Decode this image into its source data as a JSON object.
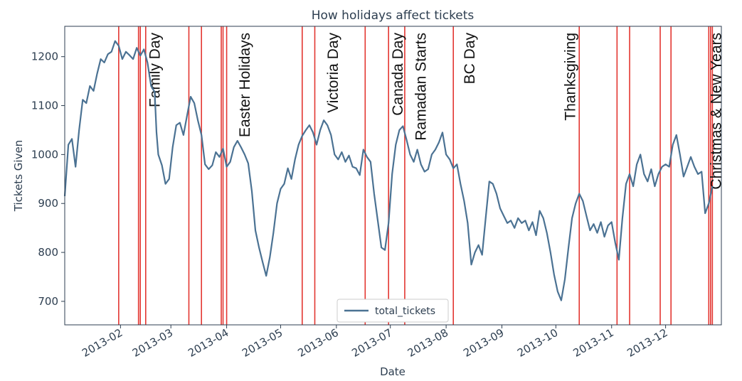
{
  "chart_data": {
    "type": "line",
    "title": "How holidays affect tickets",
    "xlabel": "Date",
    "ylabel": "Tickets Given",
    "xlim": [
      "2013-01-01",
      "2014-01-01"
    ],
    "ylim": [
      652,
      1262
    ],
    "x_tick_labels": [
      "2013-02",
      "2013-03",
      "2013-04",
      "2013-05",
      "2013-06",
      "2013-07",
      "2013-08",
      "2013-09",
      "2013-10",
      "2013-11",
      "2013-12"
    ],
    "y_ticks": [
      700,
      800,
      900,
      1000,
      1100,
      1200
    ],
    "grid": false,
    "legend": {
      "position": "bottom-center",
      "entries": [
        "total_tickets"
      ]
    },
    "colors": {
      "line": "#4b7293",
      "holiday_line": "#e0201b",
      "text": "#2d3e50"
    },
    "series": [
      {
        "name": "total_tickets",
        "points": [
          [
            "2013-01-01",
            915
          ],
          [
            "2013-01-03",
            1020
          ],
          [
            "2013-01-05",
            1032
          ],
          [
            "2013-01-07",
            975
          ],
          [
            "2013-01-09",
            1050
          ],
          [
            "2013-01-11",
            1112
          ],
          [
            "2013-01-13",
            1105
          ],
          [
            "2013-01-15",
            1140
          ],
          [
            "2013-01-17",
            1130
          ],
          [
            "2013-01-19",
            1165
          ],
          [
            "2013-01-21",
            1195
          ],
          [
            "2013-01-23",
            1188
          ],
          [
            "2013-01-25",
            1205
          ],
          [
            "2013-01-27",
            1210
          ],
          [
            "2013-01-29",
            1232
          ],
          [
            "2013-01-31",
            1222
          ],
          [
            "2013-02-02",
            1195
          ],
          [
            "2013-02-04",
            1210
          ],
          [
            "2013-02-06",
            1203
          ],
          [
            "2013-02-08",
            1195
          ],
          [
            "2013-02-10",
            1218
          ],
          [
            "2013-02-12",
            1202
          ],
          [
            "2013-02-14",
            1215
          ],
          [
            "2013-02-16",
            1188
          ],
          [
            "2013-02-18",
            1140
          ],
          [
            "2013-02-20",
            1128
          ],
          [
            "2013-02-21",
            1045
          ],
          [
            "2013-02-22",
            1000
          ],
          [
            "2013-02-24",
            978
          ],
          [
            "2013-02-26",
            940
          ],
          [
            "2013-02-28",
            950
          ],
          [
            "2013-03-02",
            1015
          ],
          [
            "2013-03-04",
            1060
          ],
          [
            "2013-03-06",
            1065
          ],
          [
            "2013-03-08",
            1040
          ],
          [
            "2013-03-10",
            1080
          ],
          [
            "2013-03-12",
            1118
          ],
          [
            "2013-03-14",
            1105
          ],
          [
            "2013-03-16",
            1070
          ],
          [
            "2013-03-18",
            1040
          ],
          [
            "2013-03-20",
            980
          ],
          [
            "2013-03-22",
            970
          ],
          [
            "2013-03-24",
            978
          ],
          [
            "2013-03-26",
            1005
          ],
          [
            "2013-03-28",
            995
          ],
          [
            "2013-03-30",
            1012
          ],
          [
            "2013-04-01",
            975
          ],
          [
            "2013-04-03",
            985
          ],
          [
            "2013-04-05",
            1015
          ],
          [
            "2013-04-07",
            1028
          ],
          [
            "2013-04-09",
            1015
          ],
          [
            "2013-04-11",
            1000
          ],
          [
            "2013-04-13",
            982
          ],
          [
            "2013-04-15",
            925
          ],
          [
            "2013-04-17",
            845
          ],
          [
            "2013-04-19",
            810
          ],
          [
            "2013-04-21",
            780
          ],
          [
            "2013-04-23",
            752
          ],
          [
            "2013-04-25",
            790
          ],
          [
            "2013-04-27",
            840
          ],
          [
            "2013-04-29",
            900
          ],
          [
            "2013-05-01",
            930
          ],
          [
            "2013-05-03",
            940
          ],
          [
            "2013-05-05",
            972
          ],
          [
            "2013-05-07",
            950
          ],
          [
            "2013-05-09",
            990
          ],
          [
            "2013-05-11",
            1020
          ],
          [
            "2013-05-13",
            1038
          ],
          [
            "2013-05-15",
            1050
          ],
          [
            "2013-05-17",
            1060
          ],
          [
            "2013-05-19",
            1045
          ],
          [
            "2013-05-21",
            1020
          ],
          [
            "2013-05-23",
            1050
          ],
          [
            "2013-05-25",
            1070
          ],
          [
            "2013-05-27",
            1060
          ],
          [
            "2013-05-29",
            1040
          ],
          [
            "2013-05-31",
            1000
          ],
          [
            "2013-06-02",
            990
          ],
          [
            "2013-06-04",
            1005
          ],
          [
            "2013-06-06",
            985
          ],
          [
            "2013-06-08",
            998
          ],
          [
            "2013-06-10",
            975
          ],
          [
            "2013-06-12",
            972
          ],
          [
            "2013-06-14",
            958
          ],
          [
            "2013-06-16",
            1010
          ],
          [
            "2013-06-18",
            995
          ],
          [
            "2013-06-20",
            985
          ],
          [
            "2013-06-22",
            920
          ],
          [
            "2013-06-24",
            865
          ],
          [
            "2013-06-26",
            810
          ],
          [
            "2013-06-28",
            805
          ],
          [
            "2013-06-30",
            860
          ],
          [
            "2013-07-02",
            960
          ],
          [
            "2013-07-04",
            1020
          ],
          [
            "2013-07-06",
            1050
          ],
          [
            "2013-07-08",
            1058
          ],
          [
            "2013-07-10",
            1030
          ],
          [
            "2013-07-12",
            1000
          ],
          [
            "2013-07-14",
            985
          ],
          [
            "2013-07-16",
            1010
          ],
          [
            "2013-07-18",
            980
          ],
          [
            "2013-07-20",
            965
          ],
          [
            "2013-07-22",
            970
          ],
          [
            "2013-07-24",
            1000
          ],
          [
            "2013-07-26",
            1010
          ],
          [
            "2013-07-28",
            1025
          ],
          [
            "2013-07-30",
            1045
          ],
          [
            "2013-08-01",
            1000
          ],
          [
            "2013-08-03",
            990
          ],
          [
            "2013-08-05",
            972
          ],
          [
            "2013-08-07",
            980
          ],
          [
            "2013-08-09",
            940
          ],
          [
            "2013-08-11",
            905
          ],
          [
            "2013-08-13",
            860
          ],
          [
            "2013-08-15",
            775
          ],
          [
            "2013-08-17",
            800
          ],
          [
            "2013-08-19",
            815
          ],
          [
            "2013-08-21",
            795
          ],
          [
            "2013-08-23",
            870
          ],
          [
            "2013-08-25",
            945
          ],
          [
            "2013-08-27",
            940
          ],
          [
            "2013-08-29",
            920
          ],
          [
            "2013-08-31",
            890
          ],
          [
            "2013-09-02",
            875
          ],
          [
            "2013-09-04",
            860
          ],
          [
            "2013-09-06",
            865
          ],
          [
            "2013-09-08",
            850
          ],
          [
            "2013-09-10",
            870
          ],
          [
            "2013-09-12",
            860
          ],
          [
            "2013-09-14",
            865
          ],
          [
            "2013-09-16",
            845
          ],
          [
            "2013-09-18",
            862
          ],
          [
            "2013-09-20",
            835
          ],
          [
            "2013-09-22",
            885
          ],
          [
            "2013-09-24",
            870
          ],
          [
            "2013-09-26",
            840
          ],
          [
            "2013-09-28",
            800
          ],
          [
            "2013-09-30",
            755
          ],
          [
            "2013-10-02",
            720
          ],
          [
            "2013-10-04",
            702
          ],
          [
            "2013-10-06",
            745
          ],
          [
            "2013-10-08",
            810
          ],
          [
            "2013-10-10",
            870
          ],
          [
            "2013-10-12",
            900
          ],
          [
            "2013-10-14",
            920
          ],
          [
            "2013-10-16",
            905
          ],
          [
            "2013-10-18",
            875
          ],
          [
            "2013-10-20",
            845
          ],
          [
            "2013-10-22",
            858
          ],
          [
            "2013-10-24",
            840
          ],
          [
            "2013-10-26",
            862
          ],
          [
            "2013-10-28",
            832
          ],
          [
            "2013-10-30",
            855
          ],
          [
            "2013-11-01",
            862
          ],
          [
            "2013-11-03",
            820
          ],
          [
            "2013-11-05",
            785
          ],
          [
            "2013-11-07",
            870
          ],
          [
            "2013-11-09",
            940
          ],
          [
            "2013-11-11",
            960
          ],
          [
            "2013-11-13",
            935
          ],
          [
            "2013-11-15",
            980
          ],
          [
            "2013-11-17",
            1000
          ],
          [
            "2013-11-19",
            960
          ],
          [
            "2013-11-21",
            945
          ],
          [
            "2013-11-23",
            970
          ],
          [
            "2013-11-25",
            935
          ],
          [
            "2013-11-27",
            960
          ],
          [
            "2013-11-29",
            975
          ],
          [
            "2013-12-01",
            980
          ],
          [
            "2013-12-03",
            975
          ],
          [
            "2013-12-05",
            1020
          ],
          [
            "2013-12-07",
            1040
          ],
          [
            "2013-12-09",
            1000
          ],
          [
            "2013-12-11",
            955
          ],
          [
            "2013-12-13",
            975
          ],
          [
            "2013-12-15",
            995
          ],
          [
            "2013-12-17",
            975
          ],
          [
            "2013-12-19",
            960
          ],
          [
            "2013-12-21",
            965
          ],
          [
            "2013-12-23",
            880
          ],
          [
            "2013-12-25",
            900
          ],
          [
            "2013-12-27",
            935
          ]
        ]
      }
    ],
    "holiday_lines": [
      "2013-01-31",
      "2013-02-11",
      "2013-02-12",
      "2013-02-15",
      "2013-03-11",
      "2013-03-18",
      "2013-03-29",
      "2013-03-30",
      "2013-04-01",
      "2013-05-13",
      "2013-05-20",
      "2013-06-17",
      "2013-06-30",
      "2013-07-09",
      "2013-08-05",
      "2013-10-14",
      "2013-11-04",
      "2013-11-11",
      "2013-11-28",
      "2013-12-04",
      "2013-12-25",
      "2013-12-26",
      "2013-12-27"
    ],
    "annotations": [
      {
        "text": "Family Day",
        "x": "2013-02-20"
      },
      {
        "text": "Easter Holidays",
        "x": "2013-04-11"
      },
      {
        "text": "Victoria Day",
        "x": "2013-05-30"
      },
      {
        "text": "Canada Day",
        "x": "2013-07-05"
      },
      {
        "text": "Ramadan Starts",
        "x": "2013-07-18"
      },
      {
        "text": "BC Day",
        "x": "2013-08-14"
      },
      {
        "text": "Thanksgiving",
        "x": "2013-10-09"
      },
      {
        "text": "Christmas & New Years",
        "x": "2013-12-29"
      }
    ]
  }
}
